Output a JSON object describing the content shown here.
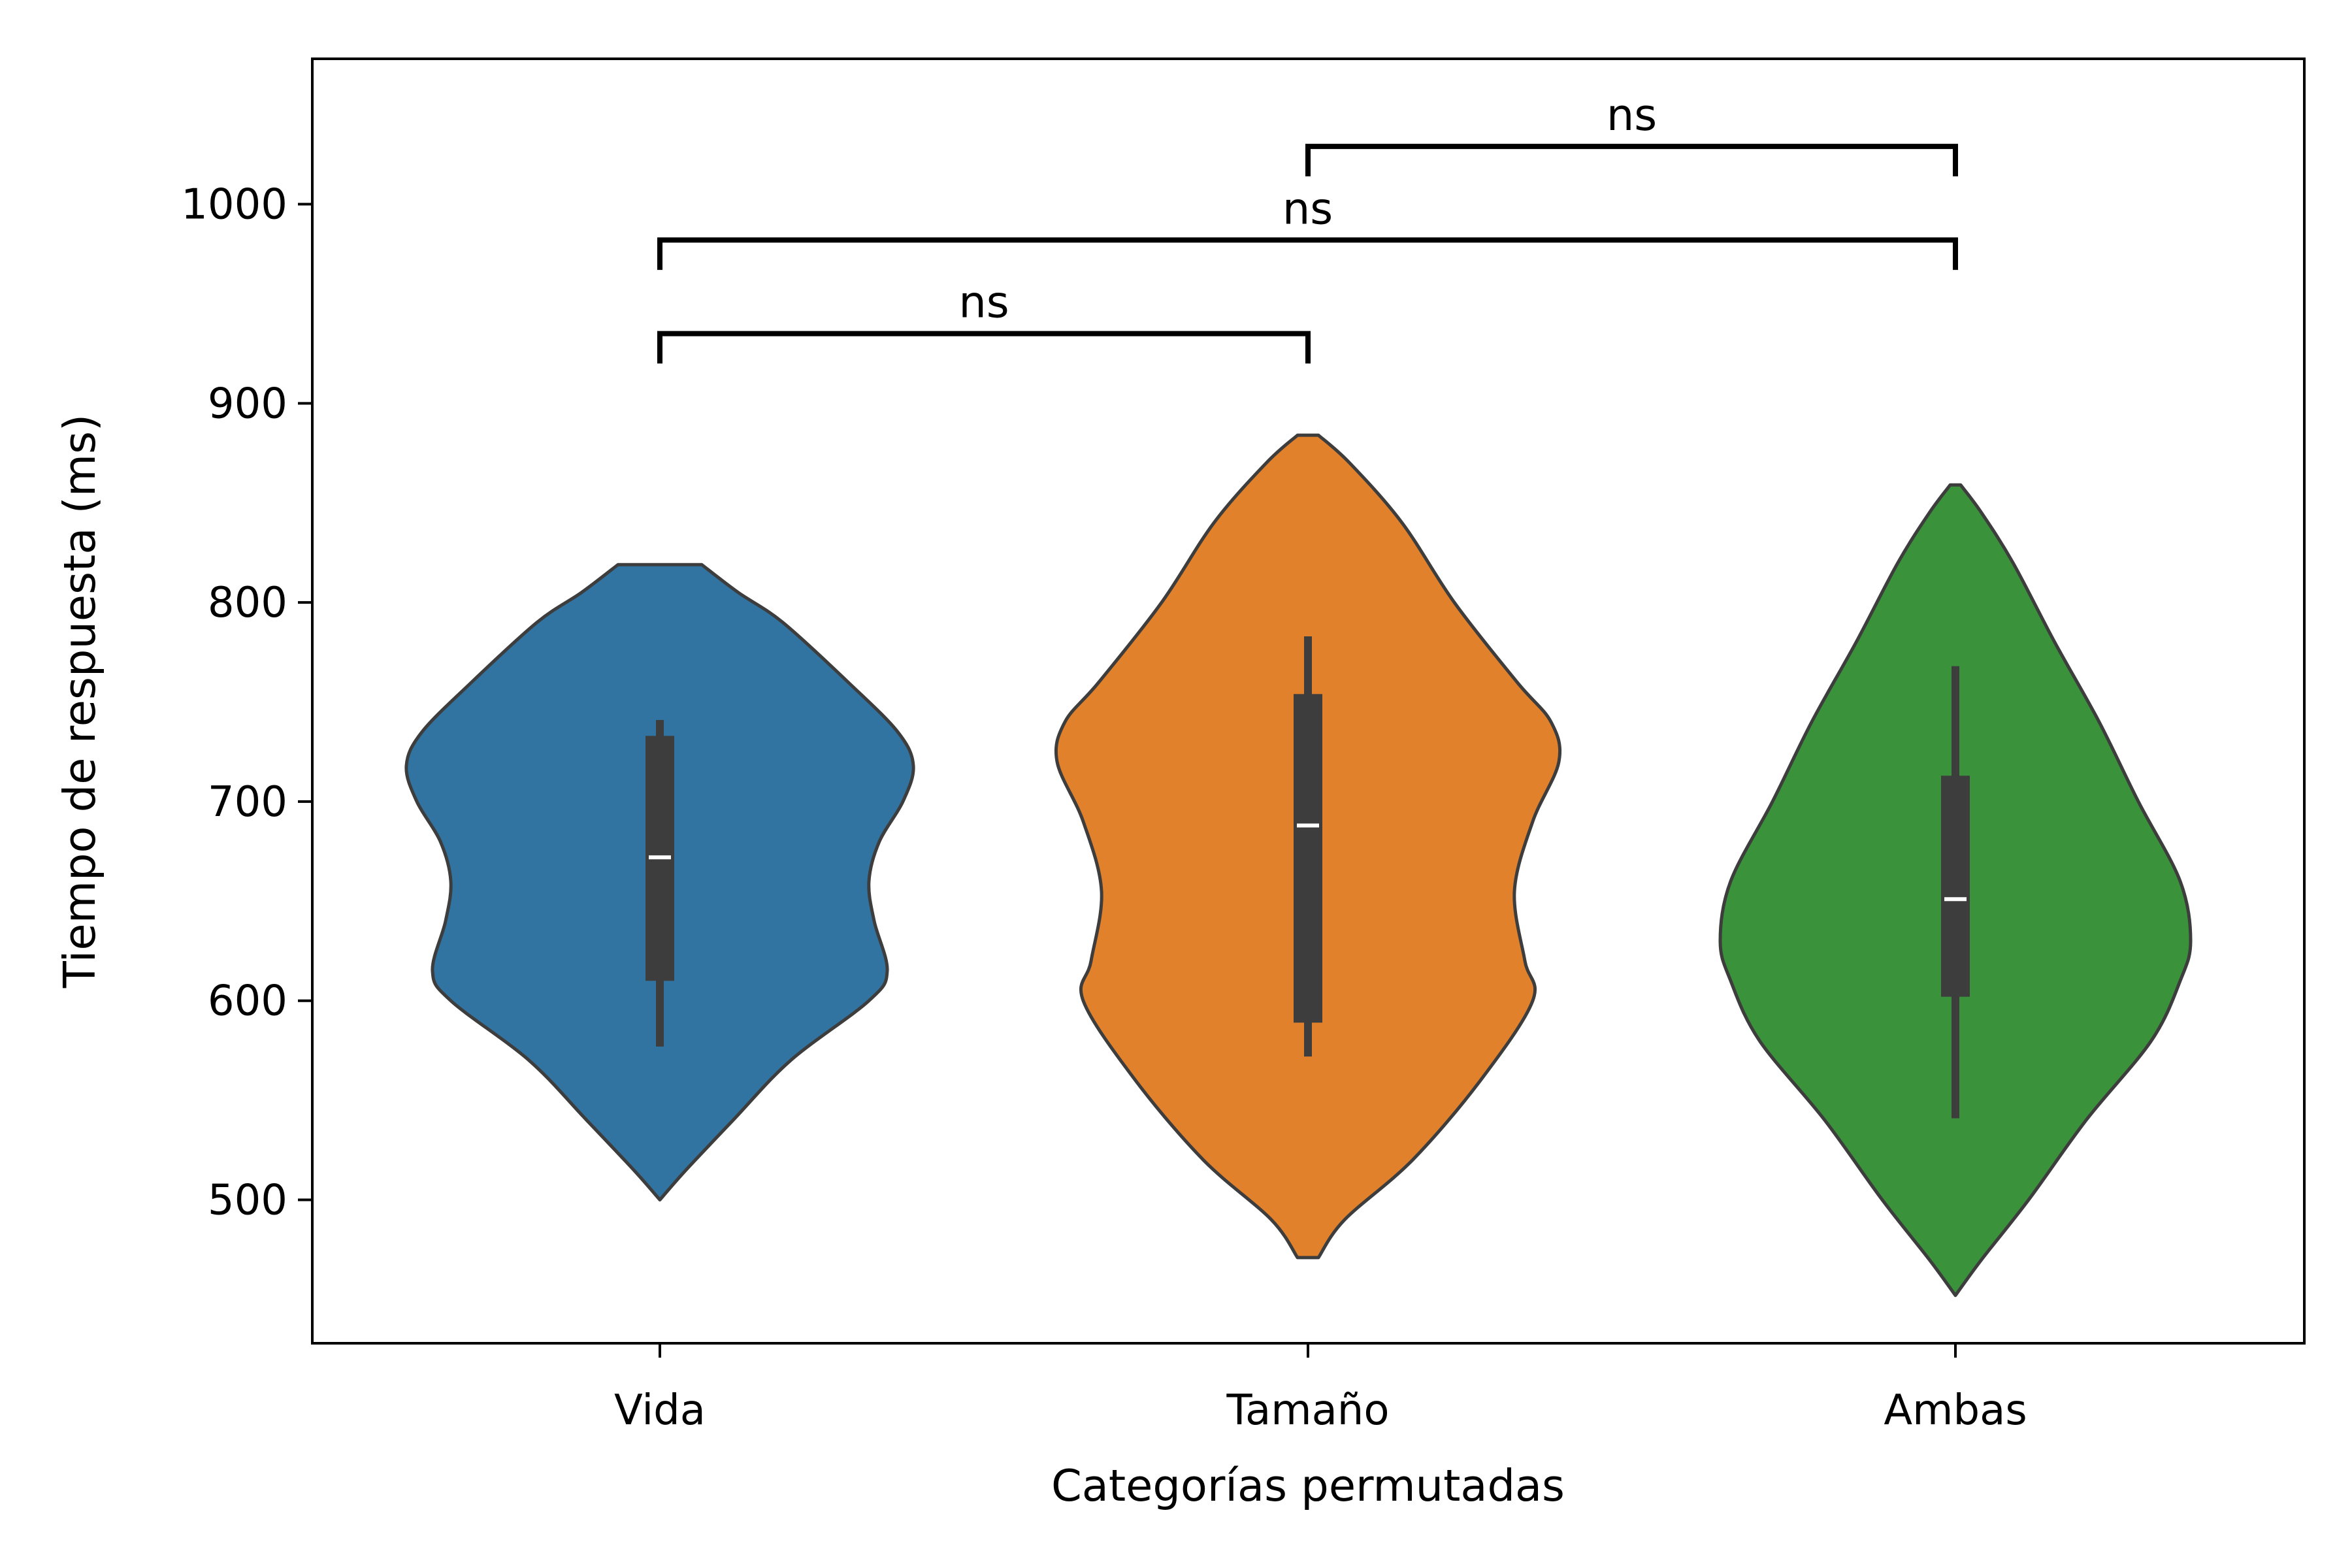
{
  "chart_data": {
    "type": "violin",
    "xlabel": "Categorías permutadas",
    "ylabel": "Tiempo de respuesta (ms)",
    "ylim": [
      428,
      1073
    ],
    "yticks": [
      500,
      600,
      700,
      800,
      900,
      1000
    ],
    "categories": [
      "Vida",
      "Tamaño",
      "Ambas"
    ],
    "grid": false,
    "series": [
      {
        "colour": "#3274a1",
        "min": 500,
        "max": 819,
        "median": 672,
        "q1": 610,
        "q3": 733,
        "whisker_low": 577,
        "whisker_high": 741,
        "density": [
          [
            500,
            0.0
          ],
          [
            515,
            0.1
          ],
          [
            540,
            0.28
          ],
          [
            570,
            0.5
          ],
          [
            600,
            0.8
          ],
          [
            615,
            0.87
          ],
          [
            640,
            0.82
          ],
          [
            660,
            0.8
          ],
          [
            680,
            0.84
          ],
          [
            700,
            0.93
          ],
          [
            718,
            0.97
          ],
          [
            735,
            0.91
          ],
          [
            760,
            0.72
          ],
          [
            790,
            0.47
          ],
          [
            805,
            0.3
          ],
          [
            819,
            0.16
          ]
        ]
      },
      {
        "colour": "#e1812c",
        "min": 471,
        "max": 884,
        "median": 688,
        "q1": 589,
        "q3": 754,
        "whisker_low": 572,
        "whisker_high": 783,
        "density": [
          [
            471,
            0.04
          ],
          [
            490,
            0.14
          ],
          [
            520,
            0.4
          ],
          [
            560,
            0.66
          ],
          [
            600,
            0.86
          ],
          [
            620,
            0.83
          ],
          [
            655,
            0.79
          ],
          [
            690,
            0.86
          ],
          [
            720,
            0.96
          ],
          [
            740,
            0.93
          ],
          [
            760,
            0.8
          ],
          [
            800,
            0.56
          ],
          [
            840,
            0.36
          ],
          [
            870,
            0.16
          ],
          [
            884,
            0.04
          ]
        ]
      },
      {
        "colour": "#3a923a",
        "min": 452,
        "max": 859,
        "median": 651,
        "q1": 602,
        "q3": 713,
        "whisker_low": 541,
        "whisker_high": 768,
        "density": [
          [
            452,
            0.0
          ],
          [
            470,
            0.1
          ],
          [
            500,
            0.28
          ],
          [
            540,
            0.5
          ],
          [
            580,
            0.75
          ],
          [
            610,
            0.86
          ],
          [
            630,
            0.9
          ],
          [
            660,
            0.86
          ],
          [
            700,
            0.7
          ],
          [
            740,
            0.55
          ],
          [
            780,
            0.38
          ],
          [
            820,
            0.22
          ],
          [
            845,
            0.1
          ],
          [
            859,
            0.02
          ]
        ]
      }
    ],
    "annotations": [
      {
        "from": 0,
        "to": 1,
        "label": "ns",
        "y": 935,
        "tip": 920
      },
      {
        "from": 0,
        "to": 2,
        "label": "ns",
        "y": 982,
        "tip": 967
      },
      {
        "from": 1,
        "to": 2,
        "label": "ns",
        "y": 1029,
        "tip": 1014
      }
    ]
  }
}
